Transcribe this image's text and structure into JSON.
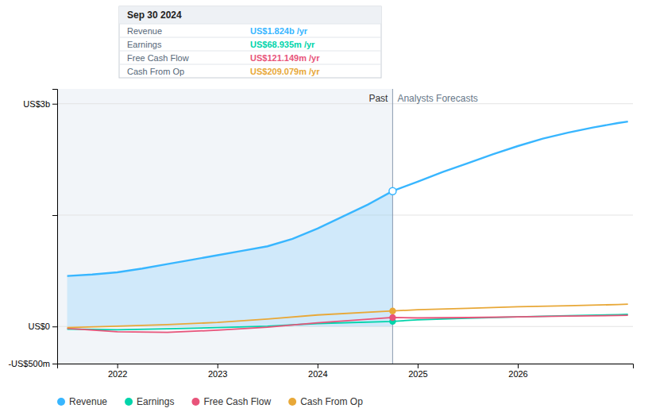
{
  "chart_data": {
    "type": "line",
    "xlim": [
      2021.4,
      2027.15
    ],
    "xticks": [
      2022,
      2023,
      2024,
      2025,
      2026
    ],
    "ylim": [
      -500,
      3200
    ],
    "yticks": [
      {
        "value": -500,
        "label": "-US$500m"
      },
      {
        "value": 0,
        "label": "US$0"
      },
      {
        "value": 1500,
        "label": null
      },
      {
        "value": 3000,
        "label": "US$3b"
      }
    ],
    "grid": true,
    "legend": "bottom",
    "divider": {
      "x": 2024.75,
      "labels": [
        "Past",
        "Analysts Forecasts"
      ]
    },
    "tooltip": {
      "title": "Sep 30 2024",
      "value_labels": [
        "US$1.824b /yr",
        "US$68.935m /yr",
        "US$121.149m /yr",
        "US$209.079m /yr"
      ]
    },
    "series": [
      {
        "name": "Revenue",
        "color": "#38b6ff",
        "x": [
          2021.5,
          2021.75,
          2022.0,
          2022.25,
          2022.5,
          2022.75,
          2023.0,
          2023.25,
          2023.5,
          2023.75,
          2024.0,
          2024.25,
          2024.5,
          2024.75,
          2024.75,
          2025.0,
          2025.25,
          2025.5,
          2025.75,
          2026.0,
          2026.25,
          2026.5,
          2026.75,
          2027.0,
          2027.1
        ],
        "values": [
          680,
          700,
          730,
          780,
          840,
          900,
          960,
          1020,
          1080,
          1180,
          1320,
          1480,
          1640,
          1824,
          1824,
          1950,
          2080,
          2200,
          2320,
          2430,
          2530,
          2610,
          2680,
          2740,
          2760
        ]
      },
      {
        "name": "Earnings",
        "color": "#00d4aa",
        "x": [
          2021.5,
          2022.0,
          2022.5,
          2023.0,
          2023.5,
          2024.0,
          2024.75,
          2024.75,
          2025.0,
          2025.5,
          2026.0,
          2026.5,
          2027.0,
          2027.1
        ],
        "values": [
          -35,
          -45,
          -30,
          -15,
          5,
          40,
          68.935,
          68.935,
          90,
          110,
          130,
          145,
          160,
          163
        ]
      },
      {
        "name": "Free Cash Flow",
        "color": "#e8547a",
        "x": [
          2021.5,
          2022.0,
          2022.5,
          2023.0,
          2023.5,
          2024.0,
          2024.75,
          2024.75,
          2025.0,
          2025.5,
          2026.0,
          2026.5,
          2027.0,
          2027.1
        ],
        "values": [
          -25,
          -70,
          -80,
          -50,
          -10,
          50,
          121.149,
          121.149,
          115,
          120,
          130,
          140,
          148,
          150
        ]
      },
      {
        "name": "Cash From Op",
        "color": "#e8a838",
        "x": [
          2021.5,
          2022.0,
          2022.5,
          2023.0,
          2023.5,
          2024.0,
          2024.75,
          2024.75,
          2025.0,
          2025.5,
          2026.0,
          2026.5,
          2027.0,
          2027.1
        ],
        "values": [
          -15,
          5,
          25,
          55,
          100,
          155,
          209.079,
          209.079,
          225,
          245,
          265,
          280,
          295,
          300
        ]
      }
    ]
  }
}
